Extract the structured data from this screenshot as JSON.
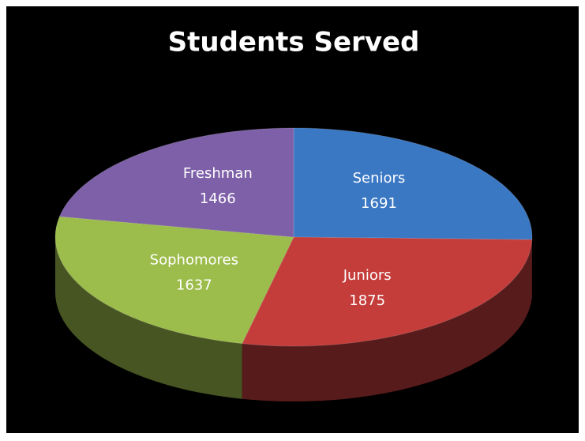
{
  "chart_data": {
    "type": "pie",
    "title": "Students Served",
    "categories": [
      "Seniors",
      "Juniors",
      "Sophomores",
      "Freshman"
    ],
    "values": [
      1691,
      1875,
      1637,
      1466
    ],
    "colors": [
      "#3b78c4",
      "#c43d3b",
      "#9cbc4b",
      "#7e60a8"
    ]
  }
}
